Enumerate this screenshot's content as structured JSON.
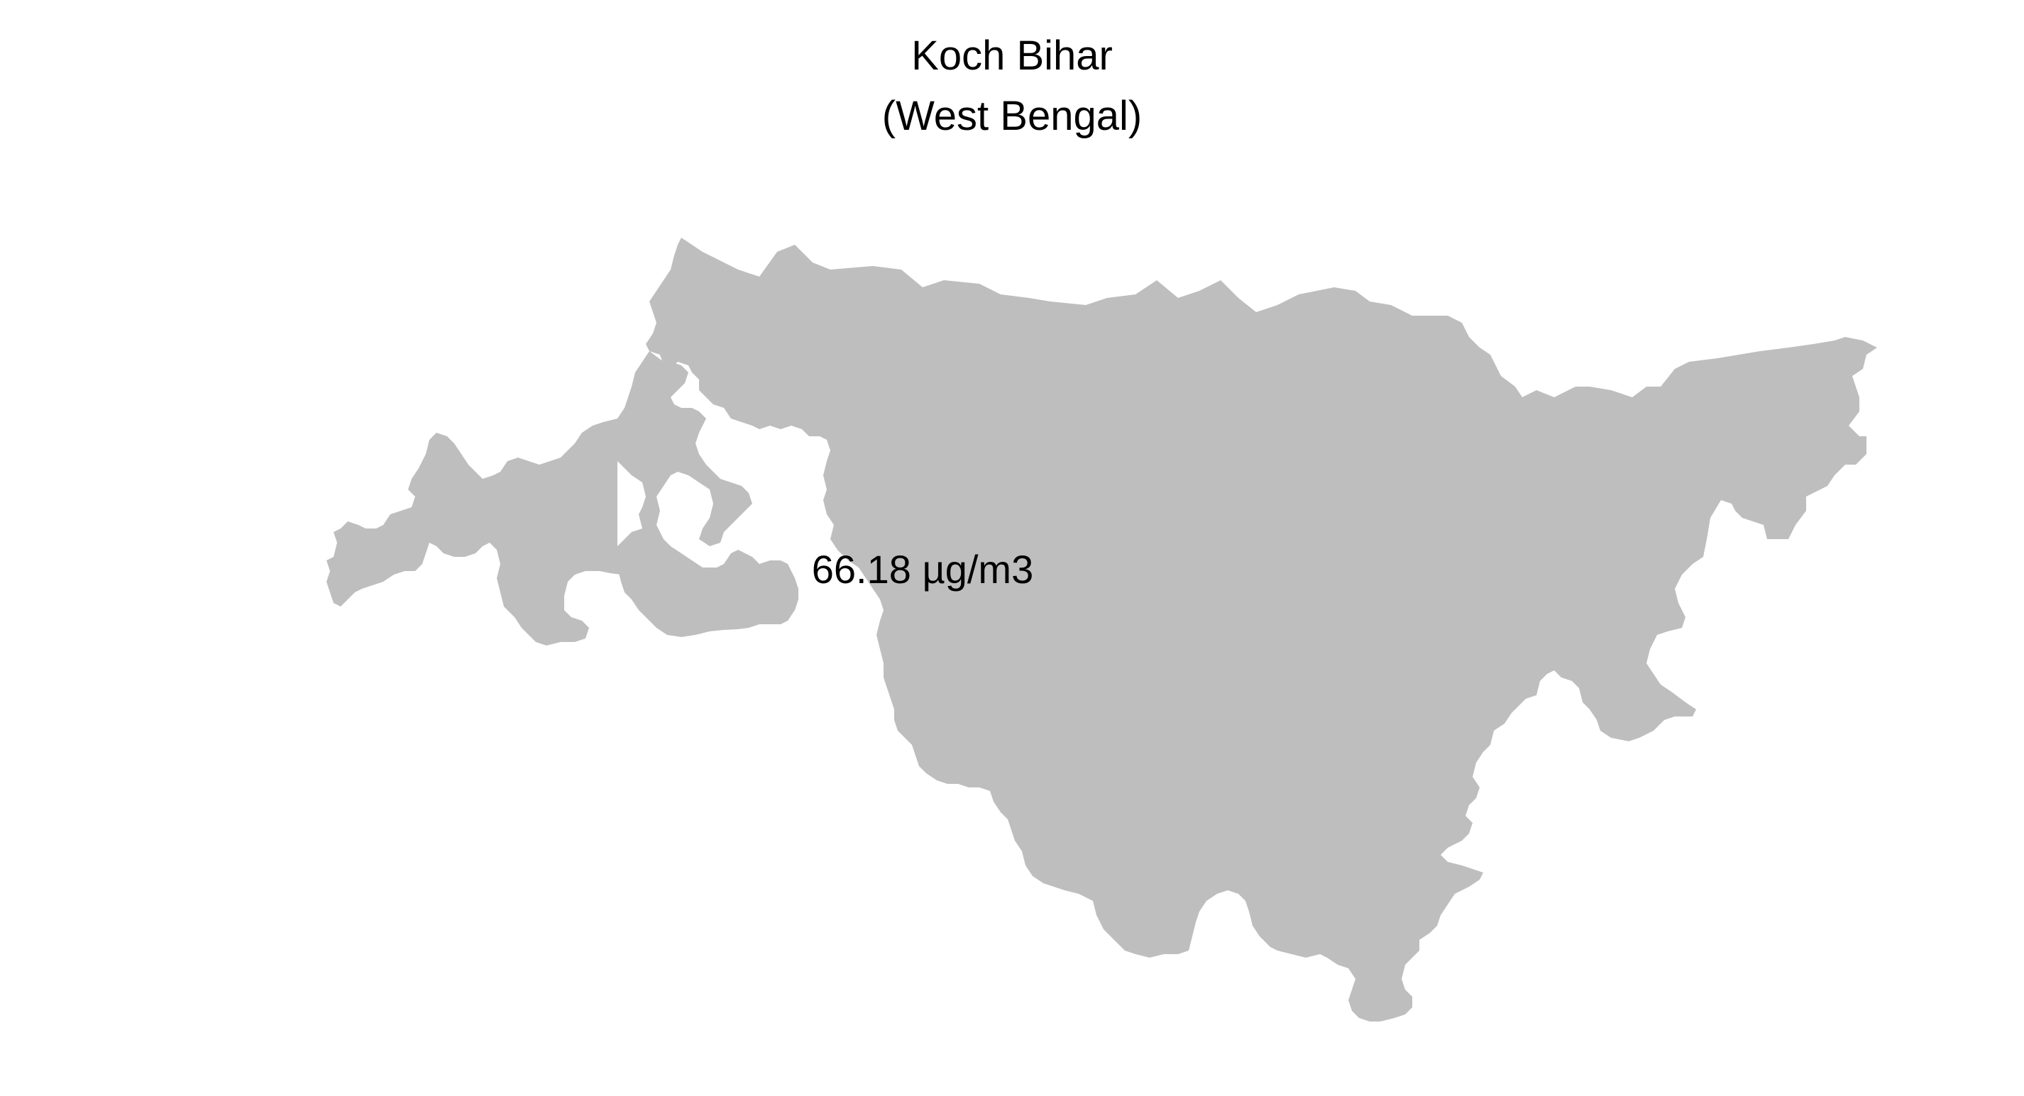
{
  "map": {
    "title": "Koch Bihar",
    "subtitle": "(West Bengal)",
    "region_label": "66.18 µg/m3",
    "fill_color": "#bebebe",
    "background_color": "#ffffff"
  }
}
